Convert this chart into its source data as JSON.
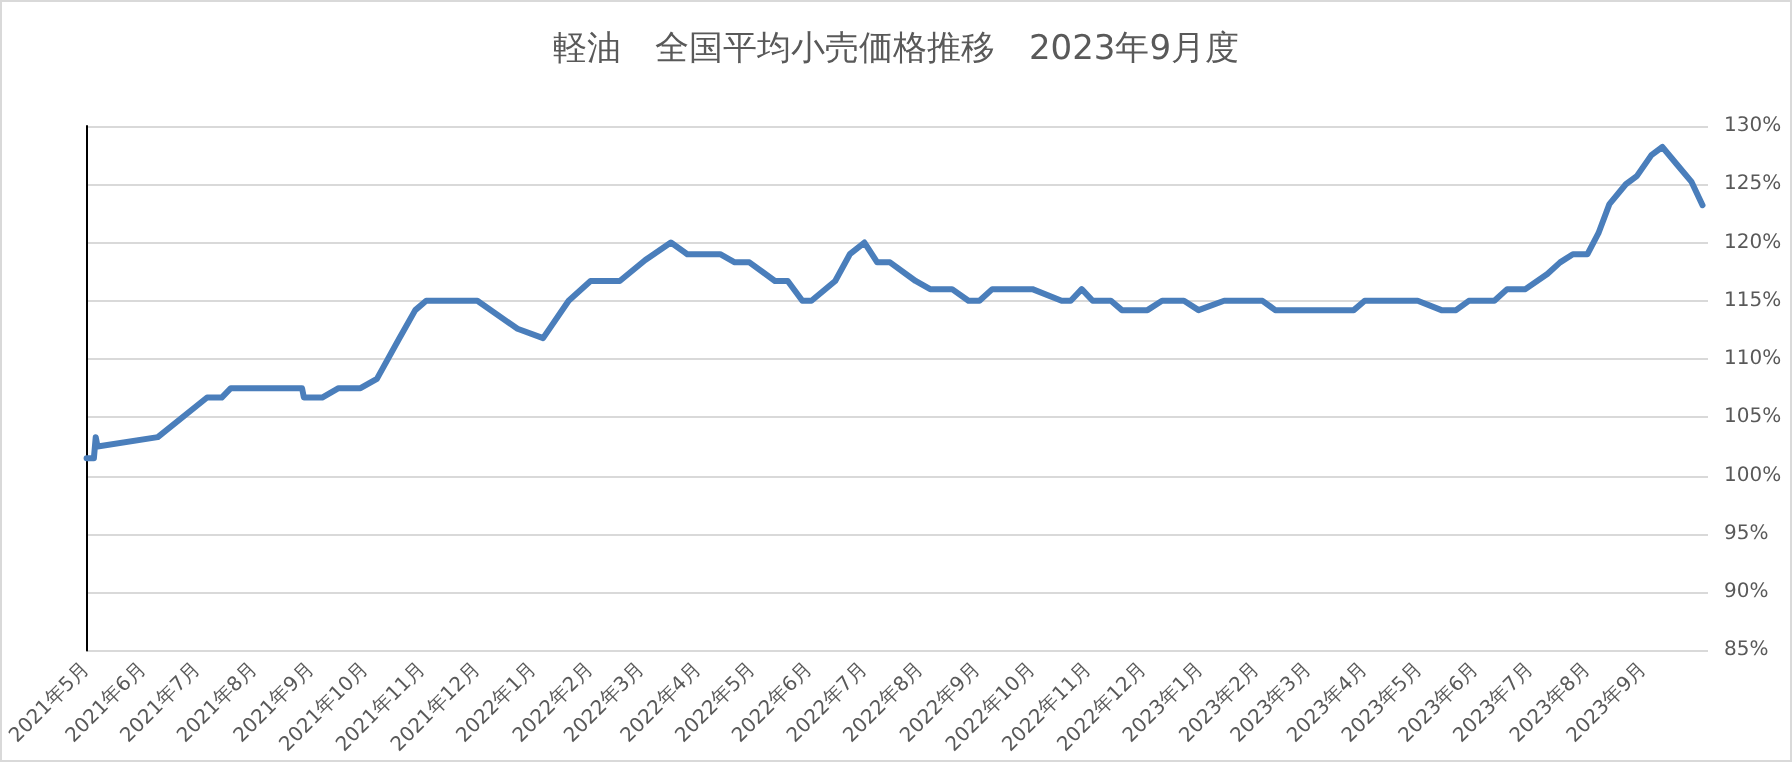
{
  "chart_data": {
    "type": "line",
    "title": "軽油　全国平均小売価格推移　2023年9月度",
    "x": [
      "2021-05-01",
      "2021-05-05",
      "2021-05-06",
      "2021-05-07",
      "2021-06-09",
      "2021-07-06",
      "2021-07-14",
      "2021-07-19",
      "2021-08-27",
      "2021-08-28",
      "2021-09-07",
      "2021-09-16",
      "2021-09-28",
      "2021-10-07",
      "2021-10-19",
      "2021-10-28",
      "2021-11-03",
      "2021-12-01",
      "2021-12-23",
      "2022-01-06",
      "2022-01-20",
      "2022-02-01",
      "2022-02-17",
      "2022-03-03",
      "2022-03-17",
      "2022-03-26",
      "2022-04-13",
      "2022-04-21",
      "2022-04-29",
      "2022-05-13",
      "2022-05-20",
      "2022-05-28",
      "2022-06-02",
      "2022-06-15",
      "2022-06-23",
      "2022-07-01",
      "2022-07-08",
      "2022-07-15",
      "2022-07-29",
      "2022-08-06",
      "2022-08-18",
      "2022-08-27",
      "2022-09-02",
      "2022-09-09",
      "2022-10-01",
      "2022-10-17",
      "2022-10-22",
      "2022-10-28",
      "2022-11-03",
      "2022-11-13",
      "2022-11-19",
      "2022-12-03",
      "2022-12-11",
      "2022-12-23",
      "2022-12-31",
      "2023-01-14",
      "2023-02-04",
      "2023-02-11",
      "2023-03-26",
      "2023-04-01",
      "2023-04-30",
      "2023-05-13",
      "2023-05-21",
      "2023-05-28",
      "2023-06-11",
      "2023-06-18",
      "2023-06-28",
      "2023-07-10",
      "2023-07-17",
      "2023-07-24",
      "2023-08-01",
      "2023-08-07",
      "2023-08-13",
      "2023-08-22",
      "2023-08-28",
      "2023-09-05",
      "2023-09-11",
      "2023-09-19",
      "2023-09-27",
      "2023-10-03"
    ],
    "series": [
      {
        "color": "#4a7ebb",
        "values": [
          101.5,
          101.5,
          103.3,
          102.5,
          103.3,
          106.7,
          106.7,
          107.5,
          107.5,
          106.7,
          106.7,
          107.5,
          107.5,
          108.3,
          111.7,
          114.2,
          115,
          115,
          112.6,
          111.8,
          115,
          116.7,
          116.7,
          118.5,
          120,
          119,
          119,
          118.3,
          118.3,
          116.7,
          116.7,
          115,
          115,
          116.7,
          119,
          120,
          118.3,
          118.3,
          116.7,
          116,
          116,
          115,
          115,
          116,
          116,
          115,
          115,
          116,
          115,
          115,
          114.2,
          114.2,
          115,
          115,
          114.2,
          115,
          115,
          114.2,
          114.2,
          115,
          115,
          114.2,
          114.2,
          115,
          115,
          116,
          116,
          117.3,
          118.3,
          119,
          119,
          120.8,
          123.3,
          125,
          125.7,
          127.5,
          128.2,
          126.7,
          125.2,
          123.2
        ]
      }
    ],
    "xlim": [
      "2021-05-01",
      "2023-10-06"
    ],
    "xticks": [
      {
        "value": "2021-05",
        "label": "2021年5月"
      },
      {
        "value": "2021-06",
        "label": "2021年6月"
      },
      {
        "value": "2021-07",
        "label": "2021年7月"
      },
      {
        "value": "2021-08",
        "label": "2021年8月"
      },
      {
        "value": "2021-09",
        "label": "2021年9月"
      },
      {
        "value": "2021-10",
        "label": "2021年10月"
      },
      {
        "value": "2021-11",
        "label": "2021年11月"
      },
      {
        "value": "2021-12",
        "label": "2021年12月"
      },
      {
        "value": "2022-01",
        "label": "2022年1月"
      },
      {
        "value": "2022-02",
        "label": "2022年2月"
      },
      {
        "value": "2022-03",
        "label": "2022年3月"
      },
      {
        "value": "2022-04",
        "label": "2022年4月"
      },
      {
        "value": "2022-05",
        "label": "2022年5月"
      },
      {
        "value": "2022-06",
        "label": "2022年6月"
      },
      {
        "value": "2022-07",
        "label": "2022年7月"
      },
      {
        "value": "2022-08",
        "label": "2022年8月"
      },
      {
        "value": "2022-09",
        "label": "2022年9月"
      },
      {
        "value": "2022-10",
        "label": "2022年10月"
      },
      {
        "value": "2022-11",
        "label": "2022年11月"
      },
      {
        "value": "2022-12",
        "label": "2022年12月"
      },
      {
        "value": "2023-01",
        "label": "2023年1月"
      },
      {
        "value": "2023-02",
        "label": "2023年2月"
      },
      {
        "value": "2023-03",
        "label": "2023年3月"
      },
      {
        "value": "2023-04",
        "label": "2023年4月"
      },
      {
        "value": "2023-05",
        "label": "2023年5月"
      },
      {
        "value": "2023-06",
        "label": "2023年6月"
      },
      {
        "value": "2023-07",
        "label": "2023年7月"
      },
      {
        "value": "2023-08",
        "label": "2023年8月"
      },
      {
        "value": "2023-09",
        "label": "2023年9月"
      }
    ],
    "ylim": [
      85,
      130
    ],
    "yticks": [
      {
        "value": 85,
        "label": "85%"
      },
      {
        "value": 90,
        "label": "90%"
      },
      {
        "value": 95,
        "label": "95%"
      },
      {
        "value": 100,
        "label": "100%"
      },
      {
        "value": 105,
        "label": "105%"
      },
      {
        "value": 110,
        "label": "110%"
      },
      {
        "value": 115,
        "label": "115%"
      },
      {
        "value": 120,
        "label": "120%"
      },
      {
        "value": 125,
        "label": "125%"
      },
      {
        "value": 130,
        "label": "130%"
      }
    ],
    "grid": "y",
    "marker": "none",
    "line_style": "solid"
  }
}
